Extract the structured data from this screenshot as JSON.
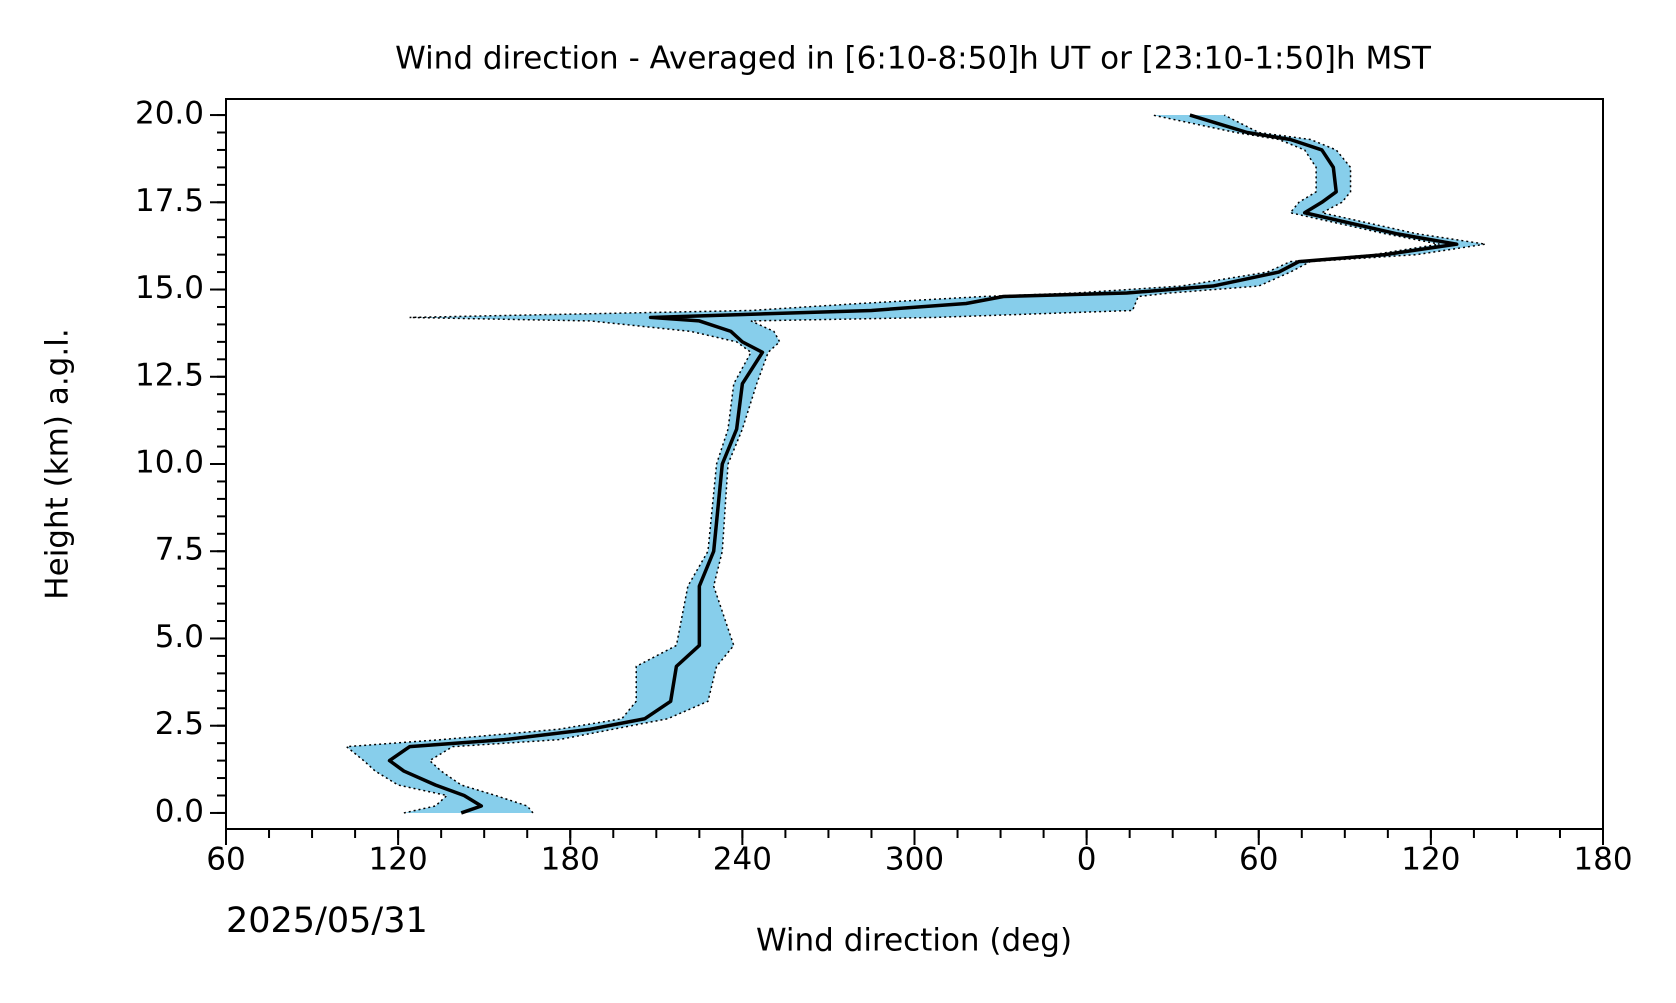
{
  "chart_data": {
    "type": "line",
    "title": "Wind direction - Averaged in [6:10-8:50]h UT or [23:10-1:50]h MST",
    "xlabel": "Wind direction (deg)",
    "ylabel": "Height (km) a.g.l.",
    "annotation": "2025/05/31",
    "xlim": [
      60,
      540
    ],
    "xticks": [
      60,
      120,
      180,
      240,
      300,
      {
        "value": 360,
        "label": "0"
      },
      {
        "value": 420,
        "label": "60"
      },
      {
        "value": 480,
        "label": "120"
      },
      {
        "value": 540,
        "label": "180"
      }
    ],
    "ylim": [
      -0.46,
      20.46
    ],
    "yticks": [
      {
        "value": 0,
        "label": "0.0"
      },
      2.5,
      {
        "value": 5,
        "label": "5.0"
      },
      7.5,
      {
        "value": 10,
        "label": "10.0"
      },
      12.5,
      {
        "value": 15,
        "label": "15.0"
      },
      17.5,
      {
        "value": 20,
        "label": "20.0"
      }
    ],
    "xminor_step": 15,
    "yminor_step": 0.5,
    "line_color": "#000000",
    "band_color": "#87ceeb",
    "y": [
      0.0,
      0.2,
      0.5,
      0.8,
      1.2,
      1.5,
      1.9,
      2.1,
      2.4,
      2.7,
      3.2,
      4.2,
      4.8,
      6.5,
      7.5,
      10.0,
      11.0,
      12.3,
      13.2,
      13.5,
      13.8,
      14.1,
      14.2,
      14.4,
      14.6,
      14.8,
      14.9,
      15.1,
      15.5,
      15.8,
      16.0,
      16.3,
      16.6,
      17.2,
      17.5,
      17.8,
      18.5,
      19.0,
      19.3,
      19.5,
      20.0
    ],
    "values": [
      142,
      149,
      143,
      133,
      122,
      117,
      124,
      157,
      187,
      206,
      215,
      217,
      225,
      225,
      230,
      233,
      238,
      240,
      247,
      240,
      236,
      225,
      208,
      285,
      318,
      331,
      374,
      404,
      427,
      434,
      464,
      489,
      468,
      436,
      442,
      447,
      446,
      442,
      431,
      416,
      396
    ],
    "lower": [
      122,
      133,
      137,
      120,
      112,
      108,
      102,
      135,
      176,
      198,
      203,
      203,
      217,
      221,
      228,
      231,
      235,
      237,
      243,
      238,
      222,
      187,
      124,
      243,
      281,
      324,
      356,
      393,
      423,
      431,
      460,
      483,
      464,
      431,
      434,
      440,
      440,
      436,
      427,
      412,
      383
    ],
    "upper": [
      167,
      165,
      154,
      142,
      135,
      131,
      139,
      176,
      195,
      214,
      228,
      231,
      237,
      230,
      233,
      235,
      240,
      245,
      249,
      253,
      251,
      243,
      307,
      376,
      377,
      378,
      389,
      420,
      431,
      438,
      475,
      499,
      475,
      442,
      449,
      452,
      452,
      447,
      438,
      420,
      408
    ]
  }
}
